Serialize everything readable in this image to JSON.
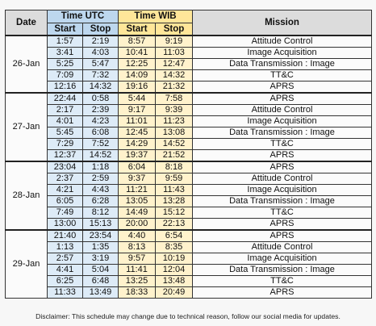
{
  "header": {
    "date": "Date",
    "time_utc": "Time UTC",
    "time_wib": "Time WIB",
    "sub": [
      "Start",
      "Stop",
      "Start",
      "Stop"
    ],
    "mission": "Mission"
  },
  "days": [
    {
      "date": "26-Jan",
      "rows": [
        [
          "1:57",
          "2:19",
          "8:57",
          "9:19",
          "Attitude Control"
        ],
        [
          "3:41",
          "4:03",
          "10:41",
          "11:03",
          "Image Acquisition"
        ],
        [
          "5:25",
          "5:47",
          "12:25",
          "12:47",
          "Data Transmission : Image"
        ],
        [
          "7:09",
          "7:32",
          "14:09",
          "14:32",
          "TT&C"
        ],
        [
          "12:16",
          "14:32",
          "19:16",
          "21:32",
          "APRS"
        ]
      ]
    },
    {
      "date": "27-Jan",
      "rows": [
        [
          "22:44",
          "0:58",
          "5:44",
          "7:58",
          "APRS"
        ],
        [
          "2:17",
          "2:39",
          "9:17",
          "9:39",
          "Attitude Control"
        ],
        [
          "4:01",
          "4:23",
          "11:01",
          "11:23",
          "Image Acquisition"
        ],
        [
          "5:45",
          "6:08",
          "12:45",
          "13:08",
          "Data Transmission : Image"
        ],
        [
          "7:29",
          "7:52",
          "14:29",
          "14:52",
          "TT&C"
        ],
        [
          "12:37",
          "14:52",
          "19:37",
          "21:52",
          "APRS"
        ]
      ]
    },
    {
      "date": "28-Jan",
      "rows": [
        [
          "23:04",
          "1:18",
          "6:04",
          "8:18",
          "APRS"
        ],
        [
          "2:37",
          "2:59",
          "9:37",
          "9:59",
          "Attitude Control"
        ],
        [
          "4:21",
          "4:43",
          "11:21",
          "11:43",
          "Image Acquisition"
        ],
        [
          "6:05",
          "6:28",
          "13:05",
          "13:28",
          "Data Transmission : Image"
        ],
        [
          "7:49",
          "8:12",
          "14:49",
          "15:12",
          "TT&C"
        ],
        [
          "13:00",
          "15:13",
          "20:00",
          "22:13",
          "APRS"
        ]
      ]
    },
    {
      "date": "29-Jan",
      "rows": [
        [
          "21:40",
          "23:54",
          "4:40",
          "6:54",
          "APRS"
        ],
        [
          "1:13",
          "1:35",
          "8:13",
          "8:35",
          "Attitude Control"
        ],
        [
          "2:57",
          "3:19",
          "9:57",
          "10:19",
          "Image Acquisition"
        ],
        [
          "4:41",
          "5:04",
          "11:41",
          "12:04",
          "Data Transmission : Image"
        ],
        [
          "6:25",
          "6:48",
          "13:25",
          "13:48",
          "TT&C"
        ],
        [
          "11:33",
          "13:49",
          "18:33",
          "20:49",
          "APRS"
        ]
      ]
    }
  ],
  "disclaimer": "Disclaimer: This schedule may change due to technical reason, follow our social media for updates."
}
